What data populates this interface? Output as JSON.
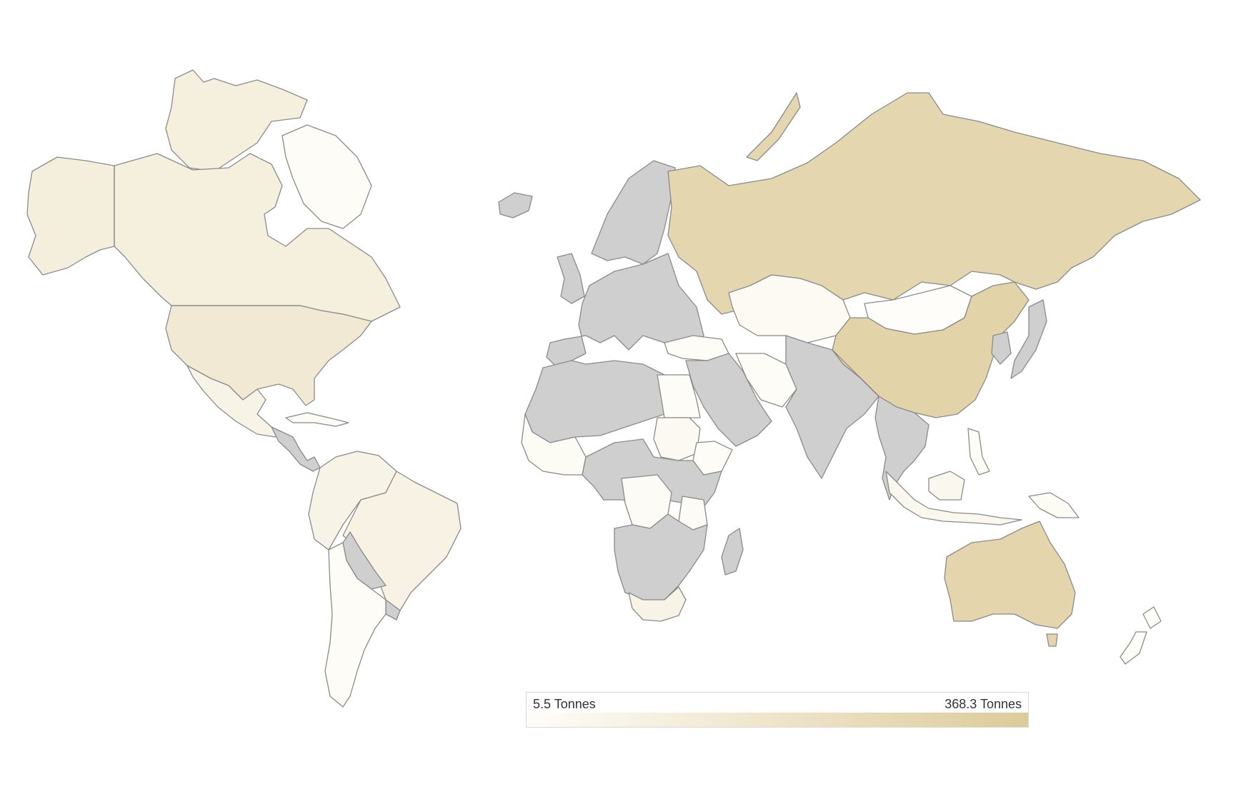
{
  "colors": {
    "no_data": "#cfcfcf",
    "scale_low": "#fefdf9",
    "scale_high": "#ddcb9a"
  },
  "scale": {
    "min_value": 5.5,
    "max_value": 368.3
  },
  "legend": {
    "min_label": "5.5 Tonnes",
    "max_label": "368.3 Tonnes"
  },
  "regions": [
    {
      "id": "canada",
      "level": 0.28
    },
    {
      "id": "arctic-islands",
      "level": 0.28
    },
    {
      "id": "greenland",
      "level": 0.02
    },
    {
      "id": "alaska",
      "level": 0.3
    },
    {
      "id": "usa",
      "level": 0.4
    },
    {
      "id": "mexico",
      "level": 0.2
    },
    {
      "id": "central-america",
      "level": -1
    },
    {
      "id": "cuba",
      "level": 0.05
    },
    {
      "id": "south-america-north",
      "level": 0.2
    },
    {
      "id": "brazil",
      "level": 0.22
    },
    {
      "id": "bolivia",
      "level": -1
    },
    {
      "id": "argentina-chile",
      "level": 0.03
    },
    {
      "id": "uruguay",
      "level": -1
    },
    {
      "id": "iceland",
      "level": -1
    },
    {
      "id": "scandinavia",
      "level": -1
    },
    {
      "id": "europe",
      "level": -1
    },
    {
      "id": "uk",
      "level": -1
    },
    {
      "id": "russia",
      "level": 0.78
    },
    {
      "id": "novaya-zemlya",
      "level": 0.78
    },
    {
      "id": "kazakhstan",
      "level": 0.06
    },
    {
      "id": "mongolia",
      "level": 0.0
    },
    {
      "id": "china",
      "level": 0.85
    },
    {
      "id": "middle-east",
      "level": -1
    },
    {
      "id": "iran",
      "level": 0.02
    },
    {
      "id": "turkey",
      "level": 0.03
    },
    {
      "id": "india-south-asia",
      "level": -1
    },
    {
      "id": "southeast-asia",
      "level": -1
    },
    {
      "id": "japan",
      "level": -1
    },
    {
      "id": "korea",
      "level": -1
    },
    {
      "id": "indonesia",
      "level": 0.12
    },
    {
      "id": "philippines",
      "level": 0.03
    },
    {
      "id": "png",
      "level": 0.05
    },
    {
      "id": "australia",
      "level": 0.8
    },
    {
      "id": "tasmania",
      "level": 0.8
    },
    {
      "id": "new-zealand",
      "level": 0.01
    },
    {
      "id": "north-africa",
      "level": -1
    },
    {
      "id": "egypt",
      "level": 0.03
    },
    {
      "id": "west-africa",
      "level": 0.05
    },
    {
      "id": "sudan",
      "level": 0.08
    },
    {
      "id": "horn-of-africa",
      "level": 0.02
    },
    {
      "id": "central-africa",
      "level": -1
    },
    {
      "id": "drc",
      "level": 0.04
    },
    {
      "id": "tanzania",
      "level": 0.04
    },
    {
      "id": "southern-africa-mid",
      "level": -1
    },
    {
      "id": "south-africa",
      "level": 0.2
    },
    {
      "id": "madagascar",
      "level": -1
    }
  ]
}
